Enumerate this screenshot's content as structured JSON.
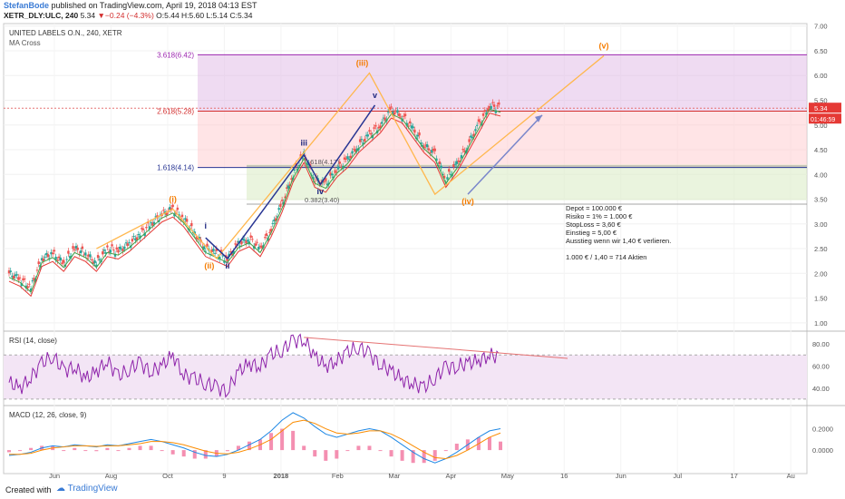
{
  "header": {
    "author": "StefanBode",
    "published": "published on TradingView.com, April 19, 2018 04:13 EST",
    "symbol": "XETR_DLY:ULC, 240",
    "last": "5.34",
    "arrow": "▼",
    "change": "−0.24 (−4.3%)",
    "ohlc": "O:5.44 H:5.60 L:5.14 C:5.34"
  },
  "footer": {
    "created_with": "Created with",
    "brand": "TradingView"
  },
  "chart_data": {
    "type": "candlestick",
    "title": "UNITED LABELS O.N., 240, XETR",
    "indicator": "MA Cross",
    "y_ticks": [
      1.0,
      1.5,
      2.0,
      2.5,
      3.0,
      3.5,
      4.0,
      4.5,
      5.0,
      5.5,
      6.0,
      6.5,
      7.0
    ],
    "y_range": [
      0.85,
      7.05
    ],
    "x_labels": [
      "Jun",
      "Aug",
      "Oct",
      "9",
      "2018",
      "Feb",
      "Mar",
      "Apr",
      "May",
      "16",
      "Jun",
      "Jul",
      "17",
      "Au"
    ],
    "last_price_label": "5.34",
    "countdown_label": "01:46:59",
    "fib_levels": [
      {
        "label": "3.618(6.42)",
        "value": 6.42,
        "color": "#9c27b0"
      },
      {
        "label": "2.618(5.28)",
        "value": 5.28,
        "color": "#d32f2f"
      },
      {
        "label": "1.618(4.14)",
        "value": 4.14,
        "color": "#283593"
      }
    ],
    "retrace_labels": [
      {
        "label": "0.618(4.17)",
        "value": 4.17
      },
      {
        "label": "0.382(3.40)",
        "value": 3.4
      }
    ],
    "wave_labels": [
      {
        "label": "(i)",
        "color": "#f57c00"
      },
      {
        "label": "(ii)",
        "color": "#f57c00"
      },
      {
        "label": "(iii)",
        "color": "#f57c00"
      },
      {
        "label": "(iv)",
        "color": "#f57c00"
      },
      {
        "label": "(v)",
        "color": "#f57c00"
      },
      {
        "label": "i",
        "color": "#1a237e"
      },
      {
        "label": "ii",
        "color": "#1a237e"
      },
      {
        "label": "iii",
        "color": "#1a237e"
      },
      {
        "label": "iv",
        "color": "#1a237e"
      },
      {
        "label": "v",
        "color": "#1a237e"
      }
    ],
    "wave_points": {
      "orange": [
        [
          0,
          2.5
        ],
        [
          2,
          3.3
        ],
        [
          5,
          2.3
        ],
        [
          10,
          6.05
        ],
        [
          12,
          3.6
        ],
        [
          14,
          6.4
        ]
      ],
      "blue": [
        [
          5,
          2.72
        ],
        [
          6,
          2.3
        ],
        [
          7.5,
          4.4
        ],
        [
          8,
          3.8
        ],
        [
          9.5,
          5.4
        ]
      ]
    },
    "notes": [
      "Depot = 100.000 €",
      "Risiko = 1% = 1.000 €",
      "StopLoss = 3,60 €",
      "Einstieg = 5,00 €",
      "Ausstieg wenn wir 1,40 € verlieren.",
      "",
      "1.000 € / 1,40 = 714 Aktien"
    ],
    "series": [
      {
        "name": "price",
        "values": [
          2.0,
          1.9,
          1.7,
          2.3,
          2.4,
          2.2,
          2.5,
          2.4,
          2.2,
          2.5,
          2.45,
          2.6,
          2.8,
          3.0,
          3.2,
          3.3,
          3.1,
          2.8,
          2.5,
          2.4,
          2.3,
          2.6,
          2.7,
          2.5,
          2.9,
          3.4,
          4.0,
          4.4,
          3.9,
          3.8,
          4.1,
          4.3,
          4.6,
          4.8,
          5.0,
          5.3,
          5.2,
          4.9,
          4.6,
          4.4,
          3.9,
          4.2,
          4.6,
          5.0,
          5.4,
          5.34
        ]
      }
    ],
    "rsi": {
      "label": "RSI (14, close)",
      "y_ticks": [
        40.0,
        60.0,
        80.0
      ],
      "y_range": [
        25,
        90
      ],
      "band": [
        30,
        70
      ],
      "values": [
        45,
        40,
        50,
        62,
        70,
        55,
        60,
        48,
        55,
        65,
        50,
        58,
        62,
        55,
        60,
        70,
        52,
        48,
        45,
        40,
        38,
        55,
        62,
        60,
        70,
        75,
        82,
        85,
        68,
        60,
        65,
        72,
        78,
        70,
        62,
        55,
        48,
        44,
        40,
        50,
        58,
        60,
        62,
        65,
        70,
        68
      ]
    },
    "macd": {
      "label": "MACD (12, 26, close, 9)",
      "y_ticks": [
        0.0,
        0.2
      ],
      "y_range": [
        -0.22,
        0.4
      ],
      "macd_values": [
        -0.05,
        -0.04,
        -0.02,
        0.02,
        0.04,
        0.03,
        0.05,
        0.04,
        0.03,
        0.05,
        0.04,
        0.06,
        0.08,
        0.1,
        0.08,
        0.05,
        0.02,
        -0.02,
        -0.05,
        -0.06,
        -0.04,
        0.0,
        0.05,
        0.1,
        0.18,
        0.28,
        0.35,
        0.3,
        0.22,
        0.15,
        0.12,
        0.15,
        0.18,
        0.2,
        0.18,
        0.12,
        0.05,
        -0.02,
        -0.08,
        -0.12,
        -0.08,
        -0.02,
        0.05,
        0.12,
        0.18,
        0.2
      ],
      "signal_values": [
        -0.04,
        -0.04,
        -0.03,
        0.0,
        0.02,
        0.03,
        0.04,
        0.04,
        0.035,
        0.04,
        0.04,
        0.05,
        0.06,
        0.08,
        0.08,
        0.07,
        0.05,
        0.02,
        -0.01,
        -0.03,
        -0.035,
        -0.02,
        0.01,
        0.05,
        0.1,
        0.18,
        0.26,
        0.28,
        0.25,
        0.2,
        0.16,
        0.15,
        0.16,
        0.18,
        0.18,
        0.15,
        0.1,
        0.04,
        -0.02,
        -0.07,
        -0.08,
        -0.05,
        0.0,
        0.06,
        0.12,
        0.16
      ]
    }
  }
}
